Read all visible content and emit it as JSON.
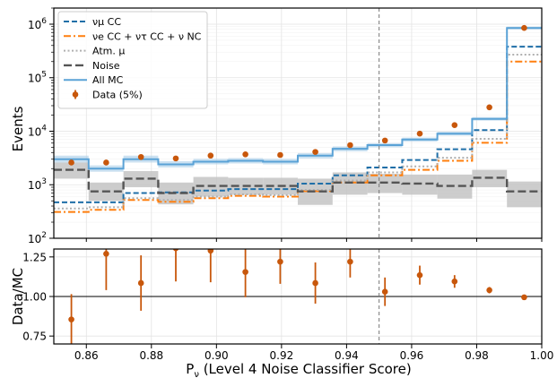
{
  "chart_data": [
    {
      "type": "line",
      "panel": "top",
      "ylabel": "Events",
      "yscale": "log",
      "ylim": [
        100,
        2000000
      ],
      "yticks": [
        {
          "value": 100,
          "label": "10²"
        },
        {
          "value": 1000,
          "label": "10³"
        },
        {
          "value": 10000,
          "label": "10⁴"
        },
        {
          "value": 100000,
          "label": "10⁵"
        },
        {
          "value": 1000000,
          "label": "10⁶"
        }
      ],
      "xlim": [
        0.85,
        1.0
      ],
      "grid": true,
      "legend_placement": "top-left",
      "bin_edges": [
        0.85,
        0.8607,
        0.8714,
        0.8821,
        0.8929,
        0.9036,
        0.9143,
        0.925,
        0.9357,
        0.9464,
        0.9571,
        0.9679,
        0.9786,
        0.9893,
        1.0
      ],
      "series": [
        {
          "name": "ν_μ CC",
          "legend": "νμ CC",
          "style": "dashed",
          "color": "#1f6fa8",
          "values": [
            470,
            470,
            700,
            720,
            780,
            830,
            830,
            1050,
            1500,
            2100,
            2900,
            4600,
            10500,
            380000
          ]
        },
        {
          "name": "ν_e CC + ν_τ CC + ν NC",
          "legend": "νe CC + ντ CC + ν NC",
          "style": "dashdot",
          "color": "#ff7f0e",
          "values": [
            310,
            340,
            520,
            480,
            560,
            620,
            600,
            760,
            1100,
            1500,
            1900,
            2800,
            6100,
            200000
          ]
        },
        {
          "name": "Atm. μ",
          "legend": "Atm. μ",
          "style": "dotted",
          "color": "#b0b0b0",
          "values": [
            360,
            380,
            560,
            520,
            600,
            660,
            640,
            800,
            1200,
            1700,
            2200,
            3200,
            7200,
            270000
          ]
        },
        {
          "name": "Noise",
          "legend": "Noise",
          "style": "dashed-thick",
          "color": "#555555",
          "values": [
            1900,
            750,
            1300,
            700,
            950,
            950,
            950,
            750,
            1100,
            1100,
            1050,
            950,
            1350,
            750
          ],
          "band_low": [
            1300,
            500,
            900,
            430,
            600,
            650,
            650,
            420,
            650,
            700,
            650,
            550,
            900,
            380
          ],
          "band_high": [
            2600,
            1100,
            1800,
            1100,
            1400,
            1350,
            1350,
            1300,
            1700,
            1600,
            1550,
            1550,
            1900,
            1150
          ]
        },
        {
          "name": "All MC",
          "legend": "All MC",
          "style": "solid",
          "color": "#5aa2d6",
          "values": [
            3000,
            2000,
            3000,
            2400,
            2700,
            2800,
            2700,
            3500,
            4700,
            5500,
            7000,
            9000,
            17000,
            850000
          ],
          "band_low": [
            2600,
            1750,
            2600,
            2100,
            2400,
            2500,
            2400,
            3100,
            4200,
            5000,
            6400,
            8300,
            15800,
            800000
          ],
          "band_high": [
            3500,
            2300,
            3500,
            2750,
            3050,
            3150,
            3050,
            3900,
            5200,
            6000,
            7600,
            9800,
            18400,
            900000
          ]
        },
        {
          "name": "Data (5%)",
          "legend": "Data (5%)",
          "style": "points",
          "color": "#c8570b",
          "x": [
            0.8554,
            0.8661,
            0.8768,
            0.8875,
            0.8982,
            0.9089,
            0.9196,
            0.9304,
            0.9411,
            0.9518,
            0.9625,
            0.9732,
            0.9839,
            0.9946
          ],
          "values": [
            2600,
            2600,
            3300,
            3100,
            3500,
            3700,
            3600,
            4100,
            5500,
            6700,
            9000,
            13000,
            28000,
            850000
          ]
        }
      ],
      "annotations": [
        {
          "type": "vertical-line",
          "x": 0.95,
          "style": "dashed",
          "color": "#777777"
        }
      ]
    },
    {
      "type": "scatter",
      "panel": "bottom",
      "ylabel": "Data/MC",
      "xlabel": "P_ν (Level 4 Noise Classifier Score)",
      "xlabel_prefix": "P",
      "xlabel_sub": "ν",
      "xlabel_suffix": " (Level 4 Noise Classifier Score)",
      "xlim": [
        0.85,
        1.0
      ],
      "ylim": [
        0.7,
        1.3
      ],
      "xticks": [
        {
          "value": 0.86,
          "label": "0.86"
        },
        {
          "value": 0.88,
          "label": "0.88"
        },
        {
          "value": 0.9,
          "label": "0.90"
        },
        {
          "value": 0.92,
          "label": "0.92"
        },
        {
          "value": 0.94,
          "label": "0.94"
        },
        {
          "value": 0.96,
          "label": "0.96"
        },
        {
          "value": 0.98,
          "label": "0.98"
        },
        {
          "value": 1.0,
          "label": "1.00"
        }
      ],
      "yticks": [
        {
          "value": 0.75,
          "label": "0.75"
        },
        {
          "value": 1.0,
          "label": "1.00"
        },
        {
          "value": 1.25,
          "label": "1.25"
        }
      ],
      "grid": true,
      "reference_line": 1.0,
      "series": [
        {
          "name": "Data/MC",
          "color": "#c8570b",
          "x": [
            0.8554,
            0.8661,
            0.8768,
            0.8875,
            0.8982,
            0.9089,
            0.9196,
            0.9304,
            0.9411,
            0.9518,
            0.9625,
            0.9732,
            0.9839,
            0.9946
          ],
          "values": [
            0.855,
            1.27,
            1.085,
            1.305,
            1.29,
            1.155,
            1.22,
            1.085,
            1.22,
            1.03,
            1.135,
            1.095,
            1.04,
            0.995
          ],
          "err_low": [
            0.16,
            0.23,
            0.175,
            0.21,
            0.2,
            0.16,
            0.14,
            0.13,
            0.1,
            0.09,
            0.06,
            0.04,
            0.02,
            0.006
          ],
          "err_high": [
            0.16,
            0.23,
            0.175,
            0.21,
            0.2,
            0.16,
            0.14,
            0.13,
            0.1,
            0.09,
            0.06,
            0.04,
            0.02,
            0.006
          ]
        }
      ],
      "annotations": [
        {
          "type": "vertical-line",
          "x": 0.95,
          "style": "dashed",
          "color": "#777777"
        }
      ]
    }
  ]
}
